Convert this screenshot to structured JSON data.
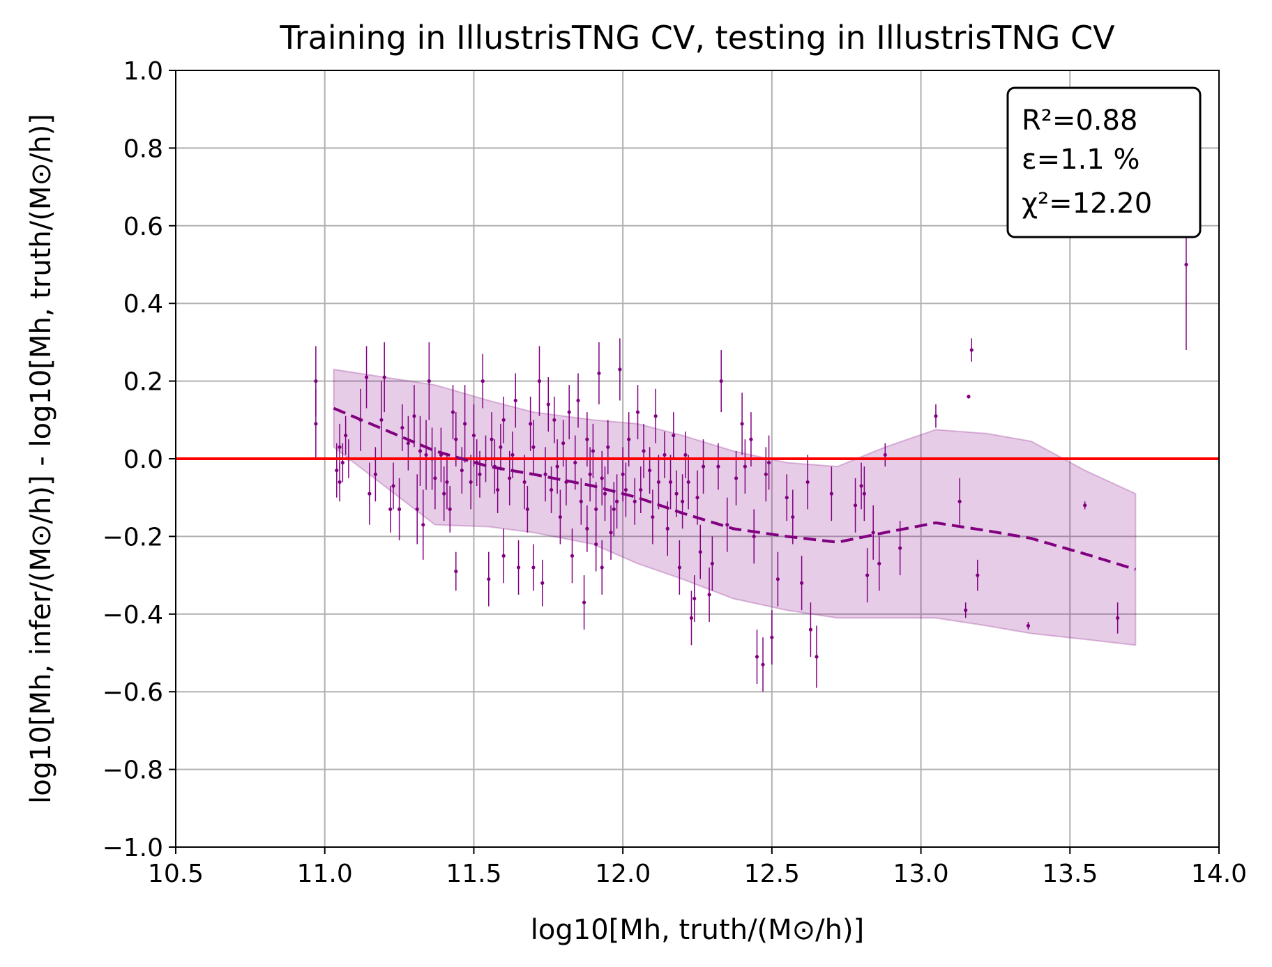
{
  "chart_data": {
    "type": "scatter",
    "title": "Training in IllustrisTNG CV, testing in IllustrisTNG CV",
    "xlabel": "log10[Mh, truth/(M⊙/h)]",
    "ylabel": "log10[Mh, infer/(M⊙/h)] - log10[Mh, truth/(M⊙/h)]",
    "xlim": [
      10.5,
      14.0
    ],
    "ylim": [
      -1.0,
      1.0
    ],
    "x_ticks": [
      "10.5",
      "11.0",
      "11.5",
      "12.0",
      "12.5",
      "13.0",
      "13.5",
      "14.0"
    ],
    "y_ticks": [
      "1.0",
      "0.8",
      "0.6",
      "0.4",
      "0.2",
      "0.0",
      "−0.2",
      "−0.4",
      "−0.6",
      "−0.8",
      "−1.0"
    ],
    "grid": true,
    "stats_box": {
      "position": "top-right",
      "r2": "R²=0.88",
      "eps": "ε=1.1 %",
      "chi2": "χ²=12.20"
    },
    "reference_line": {
      "y": 0.0,
      "color": "#ff0000"
    },
    "colors": {
      "points": "#800080",
      "band": "#800080",
      "band_opacity": 0.2
    },
    "mean_line": {
      "x": [
        11.03,
        11.37,
        11.55,
        11.7,
        11.9,
        12.05,
        12.2,
        12.37,
        12.55,
        12.72,
        12.88,
        13.05,
        13.22,
        13.37,
        13.55,
        13.72
      ],
      "y": [
        0.13,
        0.02,
        -0.02,
        -0.04,
        -0.07,
        -0.1,
        -0.14,
        -0.18,
        -0.2,
        -0.215,
        -0.19,
        -0.165,
        -0.185,
        -0.205,
        -0.245,
        -0.285
      ]
    },
    "band": {
      "x": [
        11.03,
        11.37,
        11.55,
        11.7,
        11.9,
        12.05,
        12.2,
        12.37,
        12.55,
        12.72,
        12.88,
        13.05,
        13.22,
        13.37,
        13.55,
        13.72
      ],
      "upper": [
        0.23,
        0.19,
        0.15,
        0.12,
        0.1,
        0.09,
        0.06,
        0.02,
        -0.01,
        -0.02,
        0.03,
        0.075,
        0.065,
        0.045,
        -0.03,
        -0.09
      ],
      "lower": [
        0.03,
        -0.17,
        -0.175,
        -0.19,
        -0.22,
        -0.27,
        -0.31,
        -0.36,
        -0.39,
        -0.41,
        -0.41,
        -0.41,
        -0.43,
        -0.45,
        -0.465,
        -0.48
      ]
    },
    "points": [
      {
        "x": 10.97,
        "y": 0.2,
        "err": 0.09
      },
      {
        "x": 10.97,
        "y": 0.09,
        "err": 0.09
      },
      {
        "x": 11.04,
        "y": -0.03,
        "err": 0.07
      },
      {
        "x": 11.05,
        "y": 0.03,
        "err": 0.06
      },
      {
        "x": 11.06,
        "y": -0.01,
        "err": 0.05
      },
      {
        "x": 11.07,
        "y": 0.06,
        "err": 0.05
      },
      {
        "x": 11.05,
        "y": -0.06,
        "err": 0.05
      },
      {
        "x": 11.08,
        "y": 0.0,
        "err": 0.05
      },
      {
        "x": 11.12,
        "y": 0.1,
        "err": 0.08
      },
      {
        "x": 11.14,
        "y": 0.21,
        "err": 0.08
      },
      {
        "x": 11.15,
        "y": -0.09,
        "err": 0.08
      },
      {
        "x": 11.17,
        "y": -0.04,
        "err": 0.07
      },
      {
        "x": 11.19,
        "y": 0.1,
        "err": 0.1
      },
      {
        "x": 11.2,
        "y": 0.21,
        "err": 0.09
      },
      {
        "x": 11.22,
        "y": -0.13,
        "err": 0.06
      },
      {
        "x": 11.23,
        "y": -0.07,
        "err": 0.06
      },
      {
        "x": 11.25,
        "y": -0.13,
        "err": 0.08
      },
      {
        "x": 11.26,
        "y": 0.08,
        "err": 0.06
      },
      {
        "x": 11.28,
        "y": 0.04,
        "err": 0.07
      },
      {
        "x": 11.3,
        "y": 0.11,
        "err": 0.08
      },
      {
        "x": 11.31,
        "y": -0.13,
        "err": 0.09
      },
      {
        "x": 11.32,
        "y": 0.02,
        "err": 0.09
      },
      {
        "x": 11.33,
        "y": -0.17,
        "err": 0.09
      },
      {
        "x": 11.34,
        "y": 0.01,
        "err": 0.09
      },
      {
        "x": 11.35,
        "y": 0.2,
        "err": 0.1
      },
      {
        "x": 11.36,
        "y": 0.0,
        "err": 0.08
      },
      {
        "x": 11.37,
        "y": -0.05,
        "err": 0.08
      },
      {
        "x": 11.39,
        "y": 0.01,
        "err": 0.07
      },
      {
        "x": 11.4,
        "y": -0.09,
        "err": 0.07
      },
      {
        "x": 11.41,
        "y": -0.06,
        "err": 0.07
      },
      {
        "x": 11.42,
        "y": -0.13,
        "err": 0.06
      },
      {
        "x": 11.43,
        "y": 0.12,
        "err": 0.07
      },
      {
        "x": 11.44,
        "y": 0.05,
        "err": 0.07
      },
      {
        "x": 11.46,
        "y": -0.03,
        "err": 0.06
      },
      {
        "x": 11.44,
        "y": -0.29,
        "err": 0.05
      },
      {
        "x": 11.47,
        "y": 0.09,
        "err": 0.1
      },
      {
        "x": 11.49,
        "y": -0.06,
        "err": 0.07
      },
      {
        "x": 11.5,
        "y": 0.06,
        "err": 0.08
      },
      {
        "x": 11.51,
        "y": -0.01,
        "err": 0.06
      },
      {
        "x": 11.52,
        "y": -0.04,
        "err": 0.06
      },
      {
        "x": 11.53,
        "y": 0.2,
        "err": 0.07
      },
      {
        "x": 11.54,
        "y": 0.0,
        "err": 0.06
      },
      {
        "x": 11.55,
        "y": -0.31,
        "err": 0.07
      },
      {
        "x": 11.56,
        "y": 0.05,
        "err": 0.07
      },
      {
        "x": 11.57,
        "y": -0.02,
        "err": 0.07
      },
      {
        "x": 11.58,
        "y": -0.08,
        "err": 0.06
      },
      {
        "x": 11.59,
        "y": 0.03,
        "err": 0.06
      },
      {
        "x": 11.6,
        "y": -0.25,
        "err": 0.07
      },
      {
        "x": 11.6,
        "y": 0.1,
        "err": 0.06
      },
      {
        "x": 11.62,
        "y": -0.05,
        "err": 0.07
      },
      {
        "x": 11.63,
        "y": 0.01,
        "err": 0.06
      },
      {
        "x": 11.64,
        "y": 0.15,
        "err": 0.07
      },
      {
        "x": 11.65,
        "y": -0.28,
        "err": 0.07
      },
      {
        "x": 11.67,
        "y": -0.06,
        "err": 0.07
      },
      {
        "x": 11.68,
        "y": -0.13,
        "err": 0.06
      },
      {
        "x": 11.69,
        "y": 0.09,
        "err": 0.07
      },
      {
        "x": 11.7,
        "y": -0.28,
        "err": 0.06
      },
      {
        "x": 11.7,
        "y": 0.03,
        "err": 0.07
      },
      {
        "x": 11.72,
        "y": 0.2,
        "err": 0.09
      },
      {
        "x": 11.73,
        "y": -0.32,
        "err": 0.06
      },
      {
        "x": 11.74,
        "y": -0.04,
        "err": 0.07
      },
      {
        "x": 11.75,
        "y": 0.14,
        "err": 0.07
      },
      {
        "x": 11.76,
        "y": -0.08,
        "err": 0.06
      },
      {
        "x": 11.77,
        "y": 0.1,
        "err": 0.06
      },
      {
        "x": 11.78,
        "y": -0.02,
        "err": 0.07
      },
      {
        "x": 11.79,
        "y": -0.15,
        "err": 0.07
      },
      {
        "x": 11.8,
        "y": 0.04,
        "err": 0.06
      },
      {
        "x": 11.81,
        "y": -0.06,
        "err": 0.06
      },
      {
        "x": 11.82,
        "y": 0.12,
        "err": 0.07
      },
      {
        "x": 11.83,
        "y": -0.25,
        "err": 0.07
      },
      {
        "x": 11.84,
        "y": -0.01,
        "err": 0.07
      },
      {
        "x": 11.85,
        "y": 0.15,
        "err": 0.07
      },
      {
        "x": 11.86,
        "y": -0.11,
        "err": 0.06
      },
      {
        "x": 11.87,
        "y": -0.37,
        "err": 0.07
      },
      {
        "x": 11.88,
        "y": 0.05,
        "err": 0.07
      },
      {
        "x": 11.88,
        "y": -0.18,
        "err": 0.06
      },
      {
        "x": 11.89,
        "y": -0.04,
        "err": 0.07
      },
      {
        "x": 11.9,
        "y": 0.02,
        "err": 0.07
      },
      {
        "x": 11.91,
        "y": -0.22,
        "err": 0.07
      },
      {
        "x": 11.91,
        "y": -0.13,
        "err": 0.07
      },
      {
        "x": 11.92,
        "y": 0.22,
        "err": 0.08
      },
      {
        "x": 11.93,
        "y": -0.05,
        "err": 0.07
      },
      {
        "x": 11.93,
        "y": -0.28,
        "err": 0.07
      },
      {
        "x": 11.94,
        "y": -0.09,
        "err": 0.07
      },
      {
        "x": 11.95,
        "y": 0.03,
        "err": 0.07
      },
      {
        "x": 11.96,
        "y": -0.19,
        "err": 0.07
      },
      {
        "x": 11.97,
        "y": -0.13,
        "err": 0.07
      },
      {
        "x": 11.98,
        "y": -0.11,
        "err": 0.07
      },
      {
        "x": 11.99,
        "y": 0.23,
        "err": 0.08
      },
      {
        "x": 12.0,
        "y": -0.04,
        "err": 0.07
      },
      {
        "x": 12.01,
        "y": -0.08,
        "err": 0.07
      },
      {
        "x": 12.02,
        "y": 0.05,
        "err": 0.07
      },
      {
        "x": 12.04,
        "y": -0.11,
        "err": 0.06
      },
      {
        "x": 12.05,
        "y": 0.12,
        "err": 0.07
      },
      {
        "x": 12.06,
        "y": -0.08,
        "err": 0.06
      },
      {
        "x": 12.07,
        "y": 0.02,
        "err": 0.07
      },
      {
        "x": 12.09,
        "y": -0.03,
        "err": 0.06
      },
      {
        "x": 12.1,
        "y": -0.15,
        "err": 0.07
      },
      {
        "x": 12.11,
        "y": 0.11,
        "err": 0.07
      },
      {
        "x": 12.12,
        "y": -0.06,
        "err": 0.07
      },
      {
        "x": 12.14,
        "y": 0.01,
        "err": 0.06
      },
      {
        "x": 12.15,
        "y": -0.18,
        "err": 0.07
      },
      {
        "x": 12.16,
        "y": -0.06,
        "err": 0.07
      },
      {
        "x": 12.17,
        "y": 0.06,
        "err": 0.06
      },
      {
        "x": 12.18,
        "y": -0.09,
        "err": 0.06
      },
      {
        "x": 12.19,
        "y": -0.28,
        "err": 0.07
      },
      {
        "x": 12.2,
        "y": -0.11,
        "err": 0.07
      },
      {
        "x": 12.21,
        "y": 0.01,
        "err": 0.06
      },
      {
        "x": 12.22,
        "y": -0.06,
        "err": 0.07
      },
      {
        "x": 12.23,
        "y": -0.41,
        "err": 0.07
      },
      {
        "x": 12.24,
        "y": -0.36,
        "err": 0.06
      },
      {
        "x": 12.25,
        "y": -0.1,
        "err": 0.07
      },
      {
        "x": 12.26,
        "y": -0.24,
        "err": 0.07
      },
      {
        "x": 12.27,
        "y": -0.02,
        "err": 0.07
      },
      {
        "x": 12.29,
        "y": -0.35,
        "err": 0.07
      },
      {
        "x": 12.3,
        "y": -0.27,
        "err": 0.07
      },
      {
        "x": 12.33,
        "y": 0.2,
        "err": 0.08
      },
      {
        "x": 12.32,
        "y": -0.02,
        "err": 0.06
      },
      {
        "x": 12.35,
        "y": -0.17,
        "err": 0.07
      },
      {
        "x": 12.38,
        "y": -0.05,
        "err": 0.07
      },
      {
        "x": 12.4,
        "y": 0.09,
        "err": 0.08
      },
      {
        "x": 12.41,
        "y": -0.02,
        "err": 0.07
      },
      {
        "x": 12.43,
        "y": 0.05,
        "err": 0.07
      },
      {
        "x": 12.44,
        "y": -0.2,
        "err": 0.07
      },
      {
        "x": 12.45,
        "y": -0.51,
        "err": 0.07
      },
      {
        "x": 12.47,
        "y": -0.53,
        "err": 0.07
      },
      {
        "x": 12.48,
        "y": -0.04,
        "err": 0.07
      },
      {
        "x": 12.49,
        "y": -0.01,
        "err": 0.07
      },
      {
        "x": 12.5,
        "y": -0.46,
        "err": 0.07
      },
      {
        "x": 12.52,
        "y": -0.31,
        "err": 0.07
      },
      {
        "x": 12.55,
        "y": -0.1,
        "err": 0.06
      },
      {
        "x": 12.57,
        "y": -0.15,
        "err": 0.07
      },
      {
        "x": 12.6,
        "y": -0.32,
        "err": 0.07
      },
      {
        "x": 12.62,
        "y": -0.06,
        "err": 0.07
      },
      {
        "x": 12.63,
        "y": -0.44,
        "err": 0.07
      },
      {
        "x": 12.65,
        "y": -0.51,
        "err": 0.08
      },
      {
        "x": 12.7,
        "y": -0.09,
        "err": 0.07
      },
      {
        "x": 12.78,
        "y": -0.12,
        "err": 0.07
      },
      {
        "x": 12.8,
        "y": -0.07,
        "err": 0.06
      },
      {
        "x": 12.81,
        "y": -0.09,
        "err": 0.07
      },
      {
        "x": 12.82,
        "y": -0.3,
        "err": 0.07
      },
      {
        "x": 12.84,
        "y": -0.19,
        "err": 0.07
      },
      {
        "x": 12.86,
        "y": -0.27,
        "err": 0.07
      },
      {
        "x": 12.88,
        "y": 0.01,
        "err": 0.03
      },
      {
        "x": 12.93,
        "y": -0.23,
        "err": 0.07
      },
      {
        "x": 13.05,
        "y": 0.11,
        "err": 0.03
      },
      {
        "x": 13.13,
        "y": -0.11,
        "err": 0.06
      },
      {
        "x": 13.15,
        "y": -0.39,
        "err": 0.02
      },
      {
        "x": 13.16,
        "y": 0.16,
        "err": 0.005
      },
      {
        "x": 13.17,
        "y": 0.28,
        "err": 0.03
      },
      {
        "x": 13.19,
        "y": -0.3,
        "err": 0.04
      },
      {
        "x": 13.36,
        "y": -0.43,
        "err": 0.01
      },
      {
        "x": 13.55,
        "y": -0.12,
        "err": 0.01
      },
      {
        "x": 13.66,
        "y": -0.41,
        "err": 0.04
      },
      {
        "x": 13.89,
        "y": 0.5,
        "err": 0.22
      }
    ]
  }
}
